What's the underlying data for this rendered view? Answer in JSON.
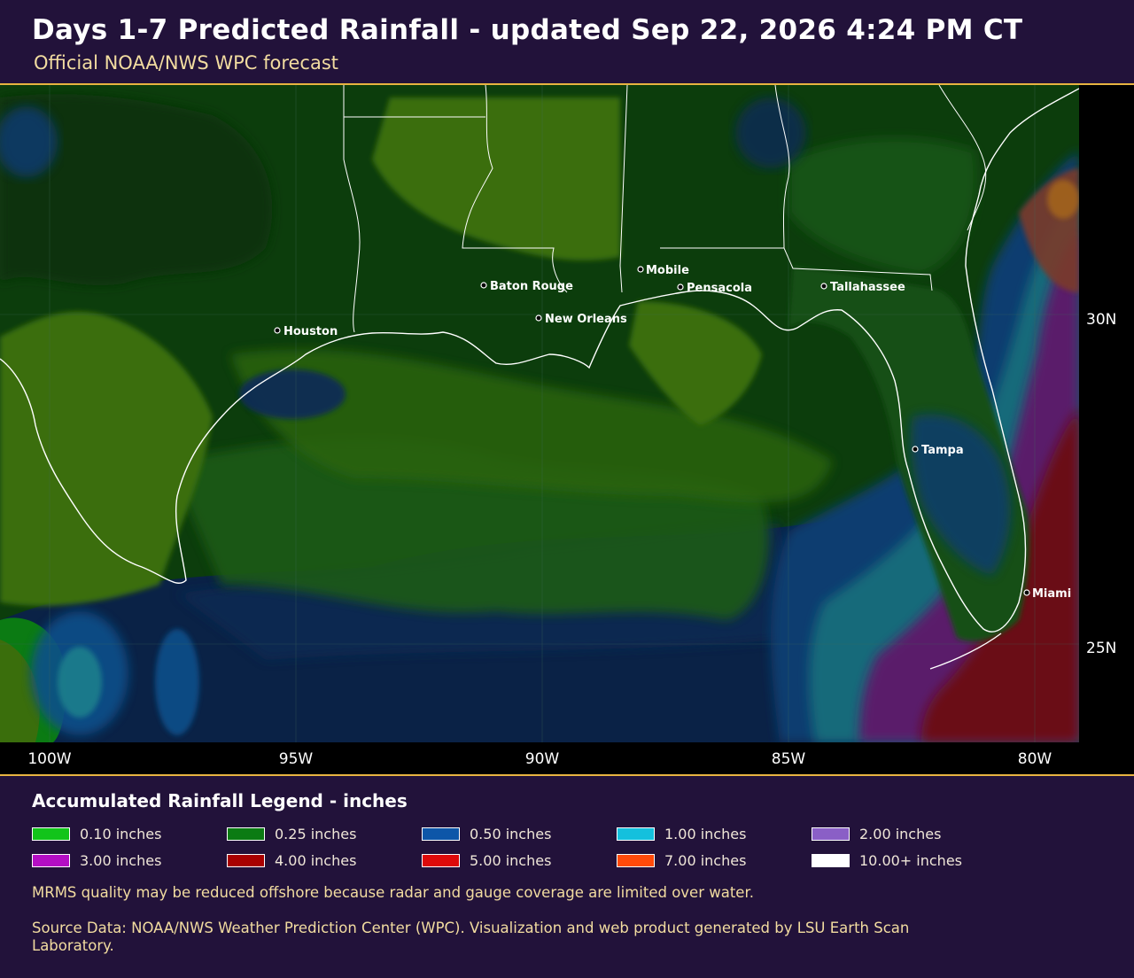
{
  "header": {
    "title": "Days 1-7 Predicted Rainfall - updated Sep 22, 2026 4:24 PM CT",
    "subtitle": "Official NOAA/NWS WPC forecast"
  },
  "map": {
    "cities": [
      {
        "name": "Houston"
      },
      {
        "name": "Baton Rouge"
      },
      {
        "name": "New Orleans"
      },
      {
        "name": "Mobile"
      },
      {
        "name": "Pensacola"
      },
      {
        "name": "Tallahassee"
      },
      {
        "name": "Tampa"
      },
      {
        "name": "Miami"
      }
    ],
    "longitude_labels": [
      "100W",
      "95W",
      "90W",
      "85W",
      "80W"
    ],
    "latitude_labels": [
      "30N",
      "25N"
    ]
  },
  "legend": {
    "title": "Accumulated Rainfall Legend - inches",
    "items": [
      {
        "label": "0.10 inches",
        "color": "#12c41a"
      },
      {
        "label": "0.25 inches",
        "color": "#0b7b13"
      },
      {
        "label": "0.50 inches",
        "color": "#0d56a8"
      },
      {
        "label": "1.00 inches",
        "color": "#14c0dd"
      },
      {
        "label": "2.00 inches",
        "color": "#8a5fc6"
      },
      {
        "label": "3.00 inches",
        "color": "#b40ec4"
      },
      {
        "label": "4.00 inches",
        "color": "#a80000"
      },
      {
        "label": "5.00 inches",
        "color": "#dd0a0a"
      },
      {
        "label": "7.00 inches",
        "color": "#ff4a0a"
      },
      {
        "label": "10.00+ inches",
        "color": "#ffffff"
      }
    ]
  },
  "footer": {
    "note": "MRMS quality may be reduced offshore because radar and gauge coverage are limited over water.",
    "source": "Source Data: NOAA/NWS Weather Prediction Center (WPC). Visualization and web product generated by LSU Earth Scan Laboratory."
  },
  "colors": {
    "background": "#22123a",
    "accent_rule": "#e7b441",
    "subtitle_text": "#f2dca0",
    "land_light_green": "#3a6e0c",
    "land_dark_green": "#0c3d0c",
    "gulf_navy": "#0a2246",
    "heavy_rain_purple": "#5a1f6a",
    "heavy_rain_red": "#6a0e14"
  }
}
